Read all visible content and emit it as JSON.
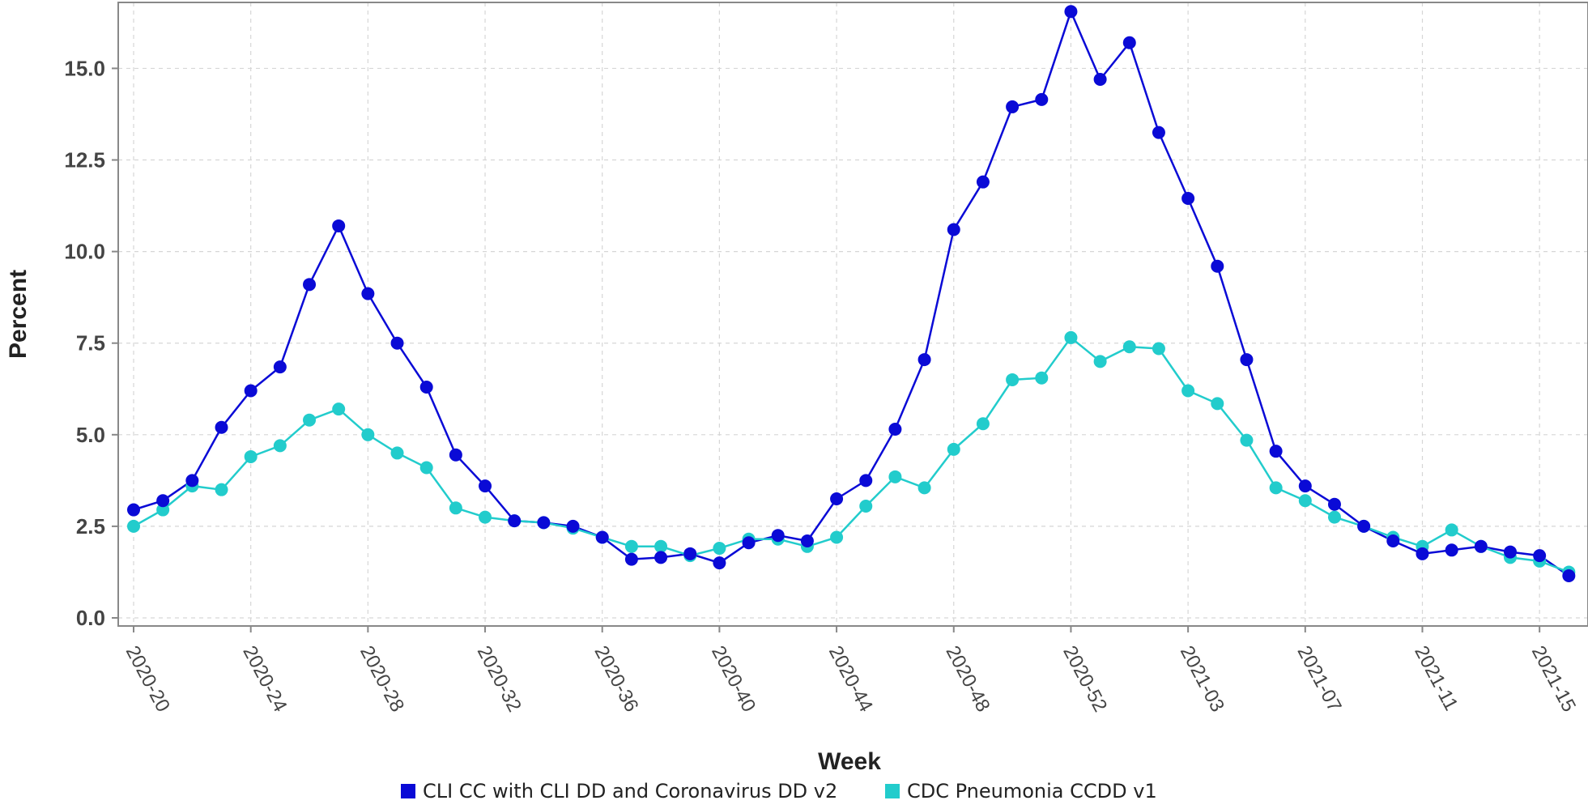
{
  "chart_data": {
    "type": "line",
    "title": "",
    "xlabel": "Week",
    "ylabel": "Percent",
    "ylim": [
      0,
      16.8
    ],
    "y_ticks": [
      "0.0",
      "2.5",
      "5.0",
      "7.5",
      "10.0",
      "12.5",
      "15.0"
    ],
    "x_ticks": [
      "2020-20",
      "2020-24",
      "2020-28",
      "2020-32",
      "2020-36",
      "2020-40",
      "2020-44",
      "2020-48",
      "2020-52",
      "2021-03",
      "2021-07",
      "2021-11",
      "2021-15"
    ],
    "x": [
      "2020-20",
      "2020-21",
      "2020-22",
      "2020-23",
      "2020-24",
      "2020-25",
      "2020-26",
      "2020-27",
      "2020-28",
      "2020-29",
      "2020-30",
      "2020-31",
      "2020-32",
      "2020-33",
      "2020-34",
      "2020-35",
      "2020-36",
      "2020-37",
      "2020-38",
      "2020-39",
      "2020-40",
      "2020-41",
      "2020-42",
      "2020-43",
      "2020-44",
      "2020-45",
      "2020-46",
      "2020-47",
      "2020-48",
      "2020-49",
      "2020-50",
      "2020-51",
      "2020-52",
      "2020-53",
      "2021-01",
      "2021-02",
      "2021-03",
      "2021-04",
      "2021-05",
      "2021-06",
      "2021-07",
      "2021-08",
      "2021-09",
      "2021-10",
      "2021-11",
      "2021-12",
      "2021-13",
      "2021-14",
      "2021-15",
      "2021-16"
    ],
    "series": [
      {
        "name": "CLI CC with CLI DD and Coronavirus DD v2",
        "color": "#0a0ad6",
        "values": [
          2.95,
          3.2,
          3.75,
          5.2,
          6.2,
          6.85,
          9.1,
          10.7,
          8.85,
          7.5,
          6.3,
          4.45,
          3.6,
          2.65,
          2.6,
          2.5,
          2.2,
          1.6,
          1.65,
          1.75,
          1.5,
          2.05,
          2.25,
          2.1,
          3.25,
          3.75,
          5.15,
          7.05,
          10.6,
          11.9,
          13.95,
          14.15,
          16.55,
          14.7,
          15.7,
          13.25,
          11.45,
          9.6,
          7.05,
          4.55,
          3.6,
          3.1,
          2.5,
          2.1,
          1.75,
          1.85,
          1.95,
          1.8,
          1.7,
          1.15
        ]
      },
      {
        "name": "CDC Pneumonia CCDD v1",
        "color": "#22cccc",
        "values": [
          2.5,
          2.95,
          3.6,
          3.5,
          4.4,
          4.7,
          5.4,
          5.7,
          5.0,
          4.5,
          4.1,
          3.0,
          2.75,
          2.65,
          2.6,
          2.45,
          2.2,
          1.95,
          1.95,
          1.7,
          1.9,
          2.15,
          2.15,
          1.95,
          2.2,
          3.05,
          3.85,
          3.55,
          4.6,
          5.3,
          6.5,
          6.55,
          7.65,
          7.0,
          7.4,
          7.35,
          6.2,
          5.85,
          4.85,
          3.55,
          3.2,
          2.75,
          2.5,
          2.2,
          1.95,
          2.4,
          1.95,
          1.65,
          1.55,
          1.25
        ]
      }
    ],
    "grid": true,
    "legend_position": "bottom"
  }
}
